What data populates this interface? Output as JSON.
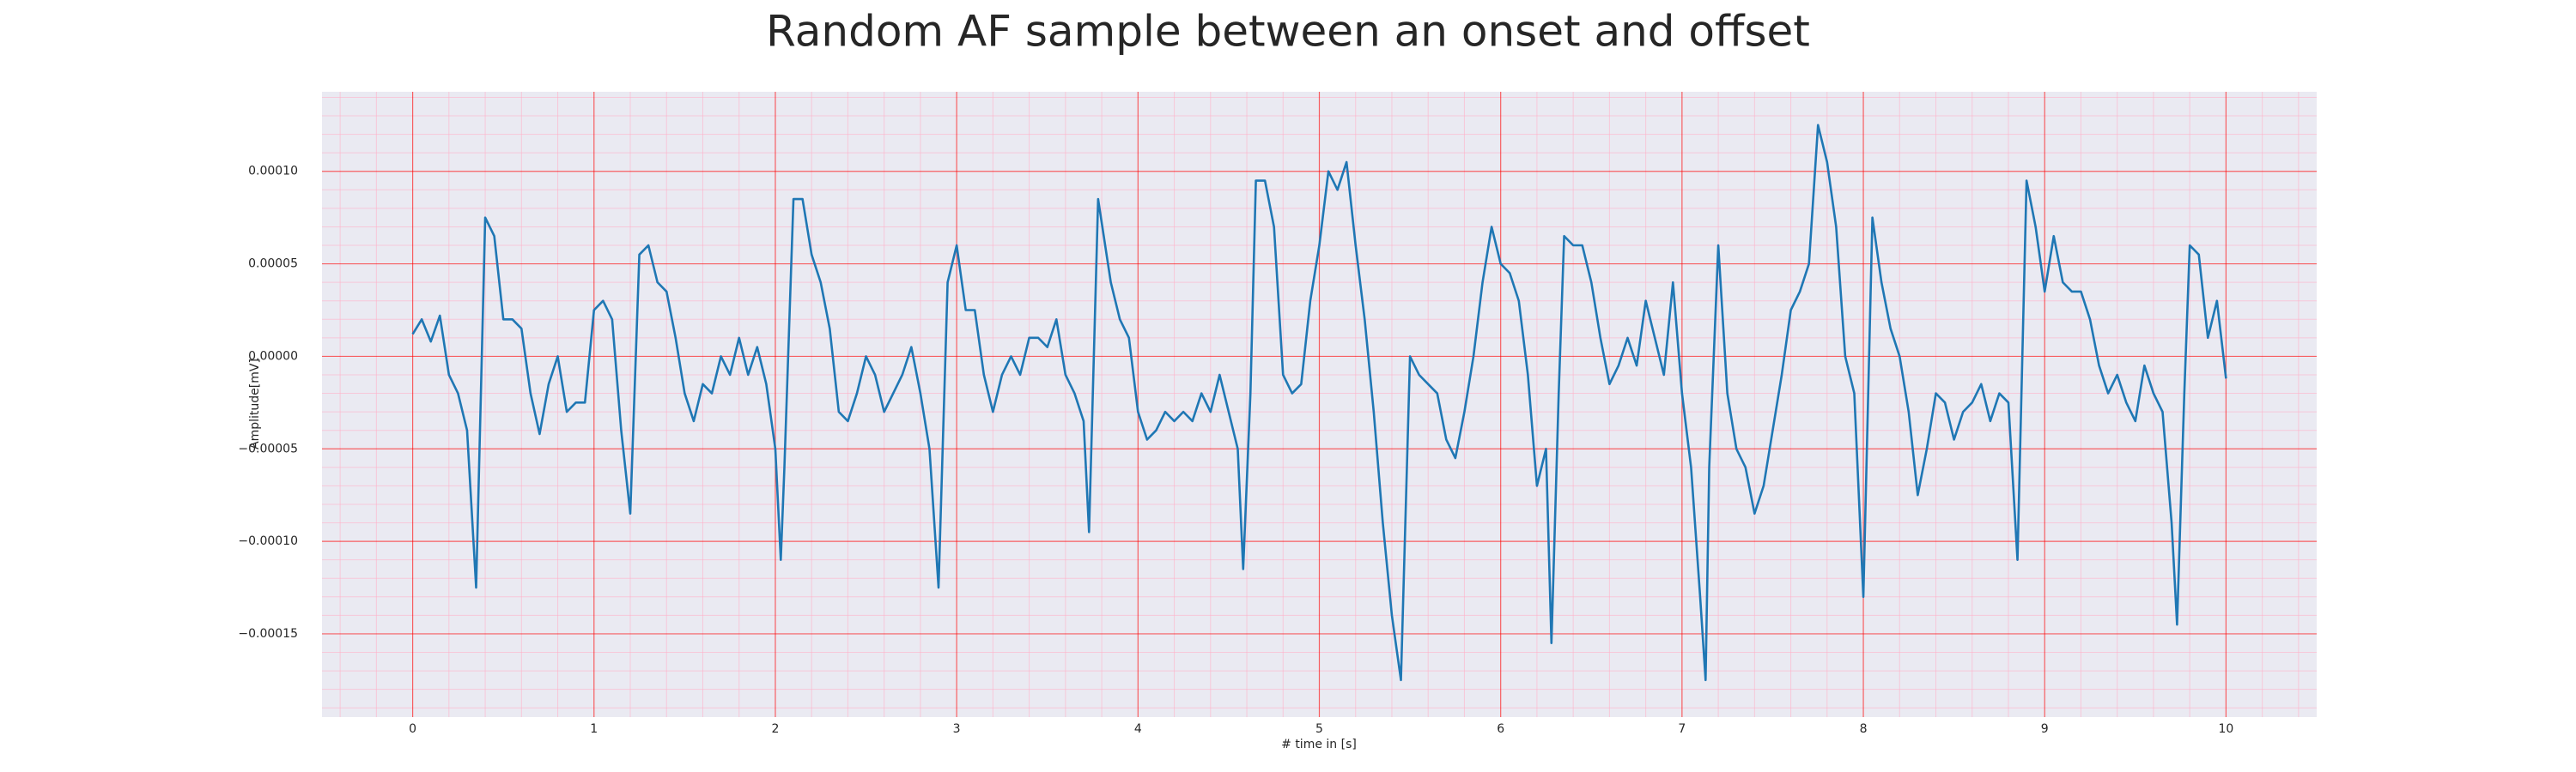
{
  "chart_data": {
    "type": "line",
    "title": "Random AF sample between an onset and offset",
    "xlabel": "# time in [s]",
    "ylabel": "Amplitude[mV]",
    "color": "#1f77b4",
    "background": "#eaeaf2",
    "grid": true,
    "grid_color": "#ff0000",
    "minor_grid": true,
    "minor_grid_color": "#ffb0c8",
    "xlim": [
      -0.5,
      10.5
    ],
    "xticks": [
      0,
      1,
      2,
      3,
      4,
      5,
      6,
      7,
      8,
      9,
      10
    ],
    "ylim": [
      -0.000195,
      0.000143
    ],
    "yticks": [
      {
        "value": -0.00015,
        "label": "−0.00015"
      },
      {
        "value": -0.0001,
        "label": "−0.00010"
      },
      {
        "value": -5e-05,
        "label": "−0.00005"
      },
      {
        "value": 0,
        "label": "0.00000"
      },
      {
        "value": 5e-05,
        "label": "0.00005"
      },
      {
        "value": 0.0001,
        "label": "0.00010"
      }
    ],
    "x": [
      0,
      0.05,
      0.1,
      0.15,
      0.2,
      0.25,
      0.3,
      0.35,
      0.4,
      0.45,
      0.5,
      0.55,
      0.6,
      0.65,
      0.7,
      0.75,
      0.8,
      0.85,
      0.9,
      0.95,
      1.0,
      1.05,
      1.1,
      1.15,
      1.2,
      1.25,
      1.3,
      1.35,
      1.4,
      1.45,
      1.5,
      1.55,
      1.6,
      1.65,
      1.7,
      1.75,
      1.8,
      1.85,
      1.9,
      1.95,
      2.0,
      2.03,
      2.05,
      2.1,
      2.15,
      2.2,
      2.25,
      2.3,
      2.35,
      2.4,
      2.45,
      2.5,
      2.55,
      2.6,
      2.65,
      2.7,
      2.75,
      2.8,
      2.85,
      2.9,
      2.95,
      3.0,
      3.05,
      3.1,
      3.15,
      3.2,
      3.25,
      3.3,
      3.35,
      3.4,
      3.45,
      3.5,
      3.55,
      3.6,
      3.65,
      3.7,
      3.73,
      3.78,
      3.85,
      3.9,
      3.95,
      4.0,
      4.05,
      4.1,
      4.15,
      4.2,
      4.25,
      4.3,
      4.35,
      4.4,
      4.45,
      4.5,
      4.55,
      4.58,
      4.62,
      4.65,
      4.7,
      4.75,
      4.8,
      4.85,
      4.9,
      4.95,
      5.0,
      5.05,
      5.1,
      5.15,
      5.2,
      5.25,
      5.3,
      5.35,
      5.4,
      5.45,
      5.5,
      5.55,
      5.6,
      5.65,
      5.7,
      5.75,
      5.8,
      5.85,
      5.9,
      5.95,
      6.0,
      6.05,
      6.1,
      6.15,
      6.2,
      6.25,
      6.28,
      6.32,
      6.35,
      6.4,
      6.45,
      6.5,
      6.55,
      6.6,
      6.65,
      6.7,
      6.75,
      6.8,
      6.85,
      6.9,
      6.95,
      7.0,
      7.05,
      7.1,
      7.13,
      7.15,
      7.2,
      7.25,
      7.3,
      7.35,
      7.4,
      7.45,
      7.5,
      7.55,
      7.6,
      7.65,
      7.7,
      7.75,
      7.8,
      7.85,
      7.9,
      7.95,
      8.0,
      8.05,
      8.1,
      8.15,
      8.2,
      8.25,
      8.3,
      8.35,
      8.4,
      8.45,
      8.5,
      8.55,
      8.6,
      8.65,
      8.7,
      8.75,
      8.8,
      8.85,
      8.9,
      8.95,
      9.0,
      9.05,
      9.1,
      9.15,
      9.2,
      9.25,
      9.3,
      9.35,
      9.4,
      9.45,
      9.5,
      9.55,
      9.6,
      9.65,
      9.7,
      9.73,
      9.77,
      9.8,
      9.85,
      9.9,
      9.95,
      10.0
    ],
    "values": [
      1.2e-05,
      2e-05,
      8e-06,
      2.2e-05,
      -1e-05,
      -2e-05,
      -4e-05,
      -0.000125,
      7.5e-05,
      6.5e-05,
      2e-05,
      2e-05,
      1.5e-05,
      -2e-05,
      -4.2e-05,
      -1.5e-05,
      0,
      -3e-05,
      -2.5e-05,
      -2.5e-05,
      2.5e-05,
      3e-05,
      2e-05,
      -4e-05,
      -8.5e-05,
      5.5e-05,
      6e-05,
      4e-05,
      3.5e-05,
      1e-05,
      -2e-05,
      -3.5e-05,
      -1.5e-05,
      -2e-05,
      0,
      -1e-05,
      1e-05,
      -1e-05,
      5e-06,
      -1.5e-05,
      -5e-05,
      -0.00011,
      -6e-05,
      8.5e-05,
      8.5e-05,
      5.5e-05,
      4e-05,
      1.5e-05,
      -3e-05,
      -3.5e-05,
      -2e-05,
      0,
      -1e-05,
      -3e-05,
      -2e-05,
      -1e-05,
      5e-06,
      -2e-05,
      -5e-05,
      -0.000125,
      4e-05,
      6e-05,
      2.5e-05,
      2.5e-05,
      -1e-05,
      -3e-05,
      -1e-05,
      0,
      -1e-05,
      1e-05,
      1e-05,
      5e-06,
      2e-05,
      -1e-05,
      -2e-05,
      -3.5e-05,
      -9.5e-05,
      8.5e-05,
      4e-05,
      2e-05,
      1e-05,
      -3e-05,
      -4.5e-05,
      -4e-05,
      -3e-05,
      -3.5e-05,
      -3e-05,
      -3.5e-05,
      -2e-05,
      -3e-05,
      -1e-05,
      -3e-05,
      -5e-05,
      -0.000115,
      -2e-05,
      9.5e-05,
      9.5e-05,
      7e-05,
      -1e-05,
      -2e-05,
      -1.5e-05,
      3e-05,
      6e-05,
      0.0001,
      9e-05,
      0.000105,
      6e-05,
      2e-05,
      -3e-05,
      -9e-05,
      -0.00014,
      -0.000175,
      0,
      -1e-05,
      -1.5e-05,
      -2e-05,
      -4.5e-05,
      -5.5e-05,
      -3e-05,
      0,
      4e-05,
      7e-05,
      5e-05,
      4.5e-05,
      3e-05,
      -1e-05,
      -7e-05,
      -5e-05,
      -0.000155,
      -2e-05,
      6.5e-05,
      6e-05,
      6e-05,
      4e-05,
      1e-05,
      -1.5e-05,
      -5e-06,
      1e-05,
      -5e-06,
      3e-05,
      1e-05,
      -1e-05,
      4e-05,
      -2e-05,
      -6e-05,
      -0.00013,
      -0.000175,
      -6e-05,
      6e-05,
      -2e-05,
      -5e-05,
      -6e-05,
      -8.5e-05,
      -7e-05,
      -4e-05,
      -1e-05,
      2.5e-05,
      3.5e-05,
      5e-05,
      0.000125,
      0.000105,
      7e-05,
      0,
      -2e-05,
      -0.00013,
      7.5e-05,
      4e-05,
      1.5e-05,
      0,
      -3e-05,
      -7.5e-05,
      -5e-05,
      -2e-05,
      -2.5e-05,
      -4.5e-05,
      -3e-05,
      -2.5e-05,
      -1.5e-05,
      -3.5e-05,
      -2e-05,
      -2.5e-05,
      -0.00011,
      9.5e-05,
      7e-05,
      3.5e-05,
      6.5e-05,
      4e-05,
      3.5e-05,
      3.5e-05,
      2e-05,
      -5e-06,
      -2e-05,
      -1e-05,
      -2.5e-05,
      -3.5e-05,
      -5e-06,
      -2e-05,
      -3e-05,
      -9e-05,
      -0.000145,
      -2e-05,
      6e-05,
      5.5e-05,
      1e-05,
      3e-05,
      -1.2e-05
    ]
  }
}
